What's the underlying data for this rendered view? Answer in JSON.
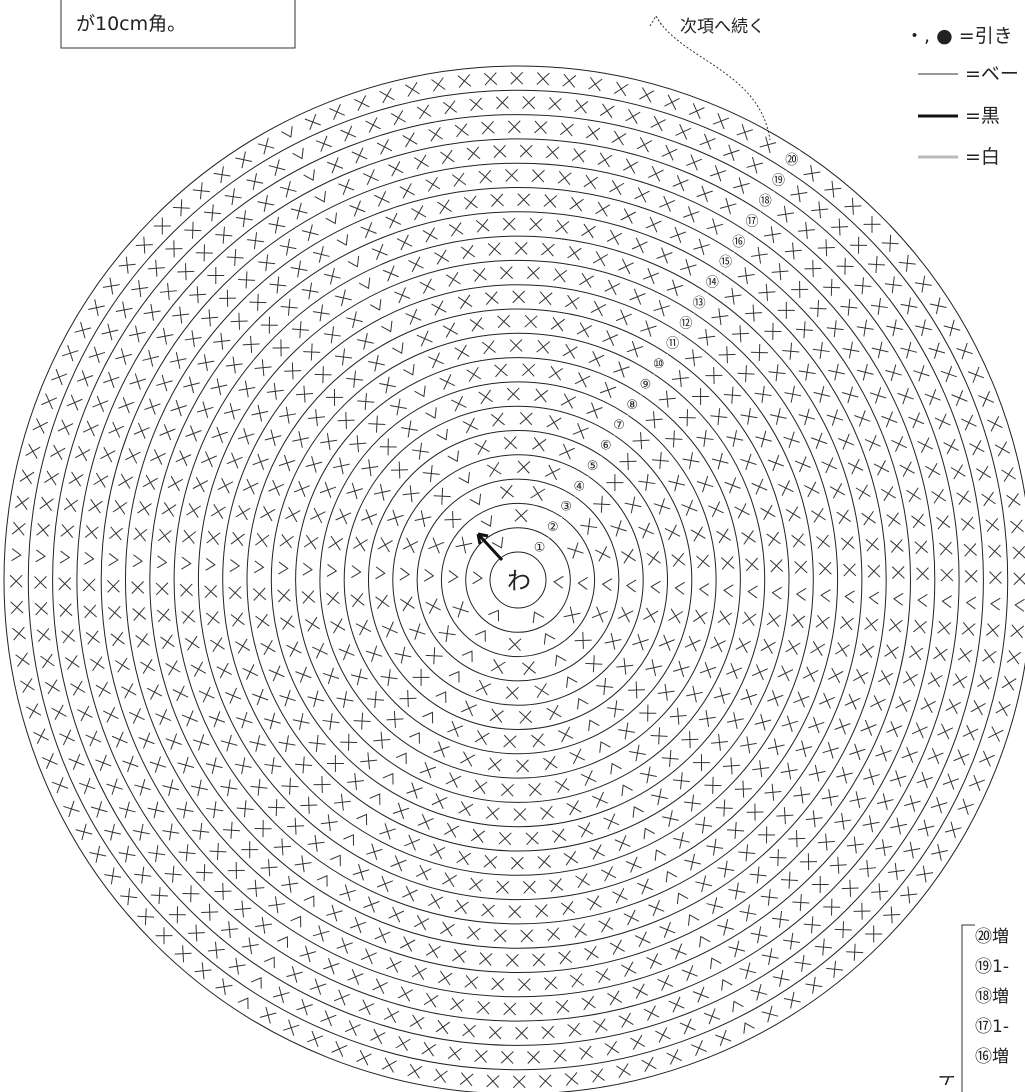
{
  "top_note": "が10cm角。",
  "continue_note": "次項へ続く",
  "center": "わ",
  "legend": [
    "・, ● =引き",
    "=ベー",
    "=黒",
    "=白"
  ],
  "rounds": [
    "①",
    "②",
    "③",
    "④",
    "⑤",
    "⑥",
    "⑦",
    "⑧",
    "⑨",
    "⑩",
    "⑪",
    "⑫",
    "⑬",
    "⑭",
    "⑮",
    "⑯",
    "⑰",
    "⑱",
    "⑲",
    "⑳"
  ],
  "side_notes": [
    "⑳増",
    "⑲1-",
    "⑱増",
    "⑰1-",
    "⑯増"
  ],
  "side_vertical": "ト"
}
